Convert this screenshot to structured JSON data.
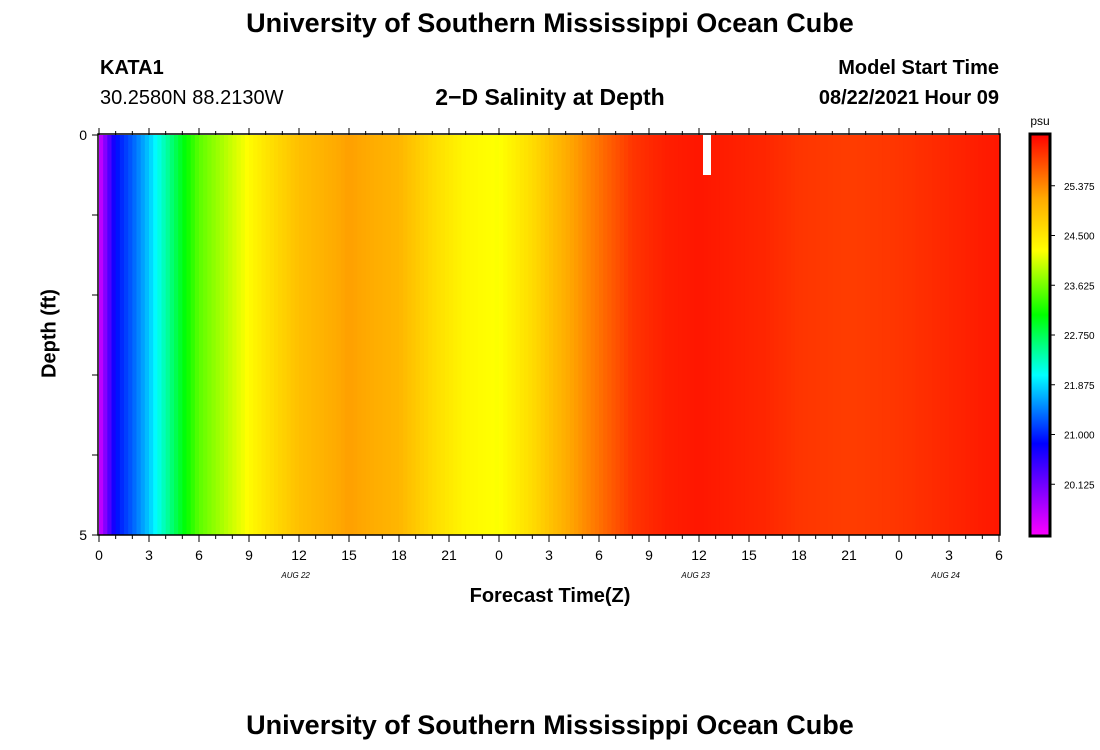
{
  "header": {
    "title": "University of Southern Mississippi Ocean Cube",
    "station_name": "KATA1",
    "station_coords": "30.2580N  88.2130W",
    "subtitle": "2−D Salinity at Depth",
    "model_start_label": "Model Start Time",
    "model_start_value": "08/22/2021 Hour 09"
  },
  "footer": {
    "title": "University of Southern Mississippi Ocean Cube"
  },
  "chart_data": {
    "type": "heatmap",
    "title": "2−D Salinity at Depth",
    "xlabel": "Forecast Time(Z)",
    "ylabel": "Depth (ft)",
    "ylim": [
      0,
      5
    ],
    "y_ticks": [
      "0",
      "5"
    ],
    "x_tick_labels": [
      "0",
      "3",
      "6",
      "9",
      "12",
      "15",
      "18",
      "21",
      "0",
      "3",
      "6",
      "9",
      "12",
      "15",
      "18",
      "21",
      "0",
      "3",
      "6"
    ],
    "x_date_labels": [
      {
        "label": "AUG  22",
        "after_tick": 4
      },
      {
        "label": "AUG  23",
        "after_tick": 12
      },
      {
        "label": "AUG  24",
        "after_tick": 17
      }
    ],
    "colorbar": {
      "unit": "psu",
      "ticks": [
        "25.375",
        "24.500",
        "23.625",
        "22.750",
        "21.875",
        "21.000",
        "20.125"
      ],
      "range": [
        19.25,
        26.25
      ]
    },
    "salinity_by_hour": [
      [
        0,
        19.5
      ],
      [
        1,
        20.9
      ],
      [
        2,
        21.3
      ],
      [
        3,
        21.8
      ],
      [
        4,
        22.4
      ],
      [
        5,
        23.0
      ],
      [
        6,
        23.5
      ],
      [
        8,
        24.0
      ],
      [
        10,
        24.5
      ],
      [
        12,
        24.9
      ],
      [
        15,
        25.2
      ],
      [
        18,
        25.0
      ],
      [
        20,
        24.6
      ],
      [
        22,
        24.3
      ],
      [
        24,
        24.2
      ],
      [
        26,
        24.6
      ],
      [
        28,
        25.1
      ],
      [
        30,
        25.5
      ],
      [
        32,
        25.9
      ],
      [
        34,
        26.05
      ],
      [
        36,
        26.1
      ],
      [
        38,
        26.05
      ],
      [
        40,
        26.0
      ],
      [
        42,
        25.9
      ],
      [
        45,
        25.85
      ],
      [
        48,
        25.9
      ],
      [
        51,
        26.0
      ],
      [
        54,
        26.1
      ]
    ],
    "colors": {
      "magenta": "#ff00ff",
      "blue": "#0000ff",
      "cyan": "#00ffff",
      "green": "#00ff00",
      "yellow": "#ffff00",
      "orange": "#ffaa00",
      "red": "#ff0000"
    }
  }
}
